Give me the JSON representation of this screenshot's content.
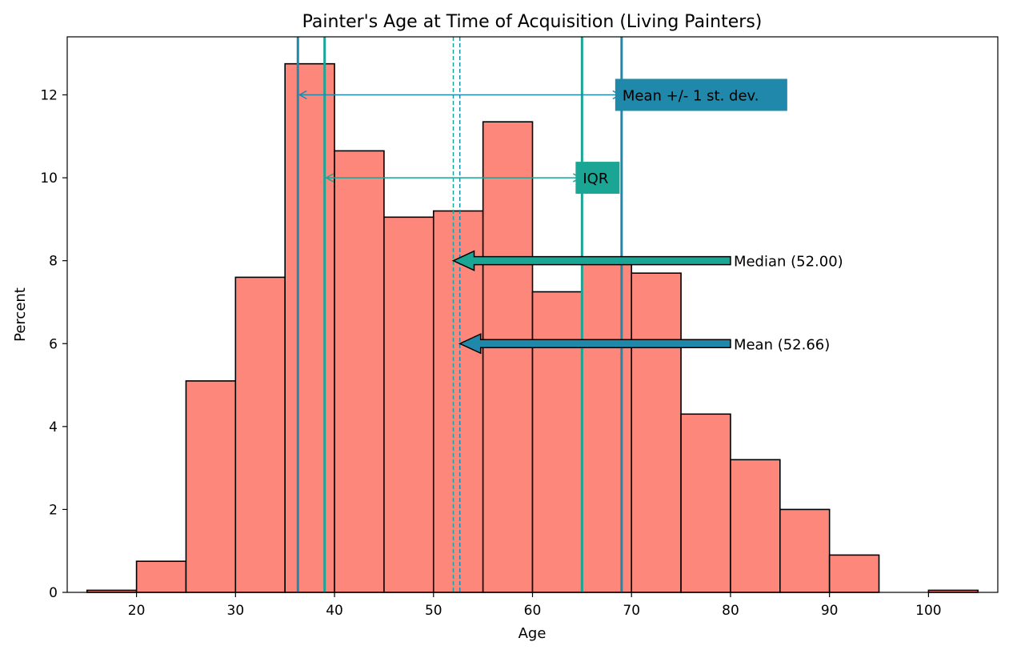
{
  "chart_data": {
    "type": "bar",
    "title": "Painter's Age at Time of Acquisition (Living Painters)",
    "xlabel": "Age",
    "ylabel": "Percent",
    "xlim": [
      13,
      107
    ],
    "ylim": [
      0,
      13.4
    ],
    "xticks": [
      20,
      30,
      40,
      50,
      60,
      70,
      80,
      90,
      100
    ],
    "yticks": [
      0,
      2,
      4,
      6,
      8,
      10,
      12
    ],
    "bin_width": 5,
    "bins": [
      {
        "start": 15,
        "value": 0.05
      },
      {
        "start": 20,
        "value": 0.75
      },
      {
        "start": 25,
        "value": 5.1
      },
      {
        "start": 30,
        "value": 7.6
      },
      {
        "start": 35,
        "value": 12.75
      },
      {
        "start": 40,
        "value": 10.65
      },
      {
        "start": 45,
        "value": 9.05
      },
      {
        "start": 50,
        "value": 9.2
      },
      {
        "start": 55,
        "value": 11.35
      },
      {
        "start": 60,
        "value": 7.25
      },
      {
        "start": 65,
        "value": 8.0
      },
      {
        "start": 70,
        "value": 7.7
      },
      {
        "start": 75,
        "value": 4.3
      },
      {
        "start": 80,
        "value": 3.2
      },
      {
        "start": 85,
        "value": 2.0
      },
      {
        "start": 90,
        "value": 0.9
      },
      {
        "start": 95,
        "value": 0.0
      },
      {
        "start": 100,
        "value": 0.05
      }
    ],
    "median": 52.0,
    "mean": 52.66,
    "q1": 39.0,
    "q3": 65.0,
    "std_low": 36.3,
    "std_high": 69.0,
    "annotations": {
      "std_label": "Mean +/- 1 st. dev.",
      "iqr_label": "IQR",
      "median_label": "Median (52.00)",
      "mean_label": "Mean (52.66)",
      "std_arrow_y": 12,
      "iqr_arrow_y": 10,
      "median_arrow_y": 8,
      "mean_arrow_y": 6,
      "arrow_tail_x": 80
    },
    "colors": {
      "bar_fill": "#fe877b",
      "bar_edge": "#000000",
      "std": "#1f88ab",
      "iqr": "#1aa595"
    },
    "grid": false,
    "legend": "none"
  }
}
